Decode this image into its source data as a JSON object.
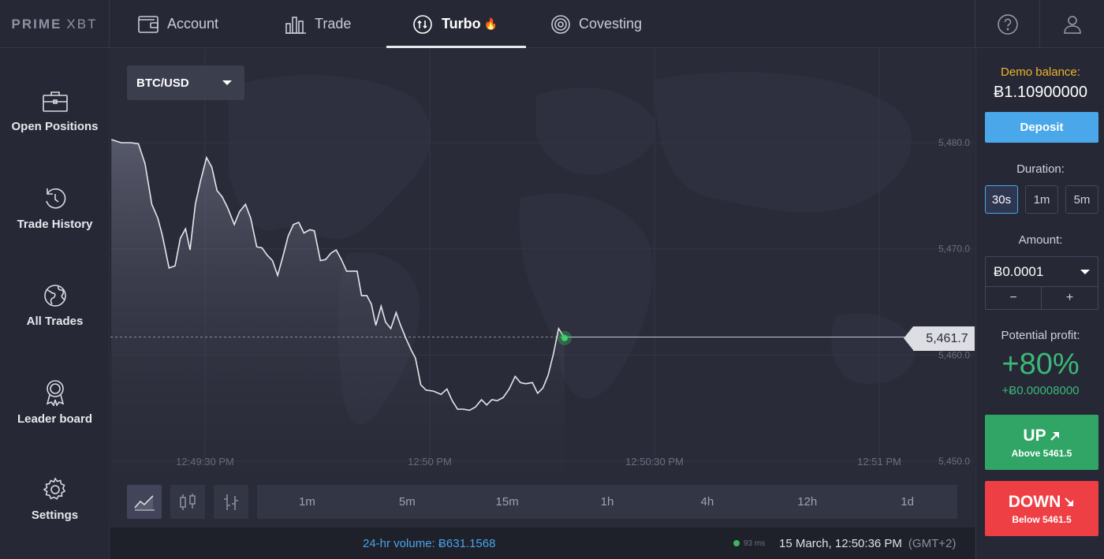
{
  "logo": {
    "part1": "PRIME",
    "part2": "XBT"
  },
  "nav": {
    "account": "Account",
    "trade": "Trade",
    "turbo": "Turbo",
    "turbo_emoji": "🔥",
    "covesting": "Covesting"
  },
  "sidebar": {
    "items": [
      {
        "label": "Open Positions",
        "icon": "briefcase-icon"
      },
      {
        "label": "Trade History",
        "icon": "history-icon"
      },
      {
        "label": "All Trades",
        "icon": "globe-icon"
      },
      {
        "label": "Leader board",
        "icon": "award-icon"
      },
      {
        "label": "Settings",
        "icon": "gear-icon"
      }
    ]
  },
  "chart": {
    "pair": "BTC/USD",
    "current_price": "5,461.7",
    "timeframes": [
      "1m",
      "5m",
      "15m",
      "1h",
      "4h",
      "12h",
      "1d"
    ],
    "chart_types": [
      "line-chart-icon",
      "candlestick-icon",
      "ohlc-bar-icon"
    ]
  },
  "chart_data": {
    "type": "line",
    "title": "",
    "xlabel": "",
    "ylabel": "",
    "ylim": [
      5450,
      5480
    ],
    "y_ticks": [
      "5,480.0",
      "5,470.0",
      "5,460.0",
      "5,450.0"
    ],
    "y_tick_values": [
      5480,
      5470,
      5460,
      5450
    ],
    "x_ticks": [
      "12:49:30 PM",
      "12:50 PM",
      "12:50:30 PM",
      "12:51 PM"
    ],
    "x_tick_seconds": [
      0,
      30,
      60,
      90
    ],
    "current": 5461.7,
    "series": [
      {
        "points": [
          [
            -12.5,
            5480.3
          ],
          [
            -11.2,
            5480.0
          ],
          [
            -9.9,
            5480.0
          ],
          [
            -8.9,
            5479.9
          ],
          [
            -8.0,
            5478.0
          ],
          [
            -7.1,
            5474.2
          ],
          [
            -6.3,
            5472.9
          ],
          [
            -5.7,
            5471.3
          ],
          [
            -4.8,
            5468.2
          ],
          [
            -4.0,
            5468.4
          ],
          [
            -3.3,
            5471.0
          ],
          [
            -2.6,
            5471.9
          ],
          [
            -2.0,
            5469.9
          ],
          [
            -1.3,
            5474.2
          ],
          [
            -0.6,
            5476.4
          ],
          [
            0.2,
            5478.6
          ],
          [
            0.9,
            5477.7
          ],
          [
            1.6,
            5475.5
          ],
          [
            2.3,
            5474.9
          ],
          [
            3.0,
            5473.9
          ],
          [
            3.9,
            5472.3
          ],
          [
            4.6,
            5473.5
          ],
          [
            5.4,
            5474.2
          ],
          [
            6.1,
            5472.9
          ],
          [
            6.9,
            5470.2
          ],
          [
            7.6,
            5470.1
          ],
          [
            8.3,
            5469.4
          ],
          [
            9.0,
            5468.9
          ],
          [
            9.7,
            5467.5
          ],
          [
            10.4,
            5469.3
          ],
          [
            11.1,
            5471.2
          ],
          [
            11.8,
            5472.3
          ],
          [
            12.5,
            5472.5
          ],
          [
            13.2,
            5471.5
          ],
          [
            14.0,
            5471.8
          ],
          [
            14.6,
            5471.7
          ],
          [
            15.4,
            5468.9
          ],
          [
            16.1,
            5469.0
          ],
          [
            16.8,
            5469.6
          ],
          [
            17.5,
            5469.9
          ],
          [
            18.2,
            5469.0
          ],
          [
            18.9,
            5467.9
          ],
          [
            19.6,
            5467.9
          ],
          [
            20.3,
            5467.9
          ],
          [
            20.9,
            5465.6
          ],
          [
            21.6,
            5465.6
          ],
          [
            22.2,
            5464.8
          ],
          [
            22.8,
            5462.8
          ],
          [
            23.5,
            5464.6
          ],
          [
            24.1,
            5463.1
          ],
          [
            24.8,
            5462.5
          ],
          [
            25.5,
            5464.0
          ],
          [
            26.1,
            5462.8
          ],
          [
            26.8,
            5461.6
          ],
          [
            27.5,
            5460.5
          ],
          [
            28.1,
            5459.7
          ],
          [
            28.8,
            5457.2
          ],
          [
            29.5,
            5456.7
          ],
          [
            30.5,
            5456.6
          ],
          [
            31.5,
            5456.3
          ],
          [
            32.3,
            5456.8
          ],
          [
            33.0,
            5455.7
          ],
          [
            33.7,
            5454.9
          ],
          [
            34.5,
            5454.9
          ],
          [
            35.3,
            5454.8
          ],
          [
            36.1,
            5455.1
          ],
          [
            36.9,
            5455.8
          ],
          [
            37.6,
            5455.3
          ],
          [
            38.3,
            5455.8
          ],
          [
            39.0,
            5455.7
          ],
          [
            39.8,
            5456.0
          ],
          [
            40.6,
            5456.8
          ],
          [
            41.4,
            5458.0
          ],
          [
            42.1,
            5457.4
          ],
          [
            42.8,
            5457.3
          ],
          [
            43.7,
            5457.4
          ],
          [
            44.4,
            5456.4
          ],
          [
            45.1,
            5456.9
          ],
          [
            45.8,
            5458.1
          ],
          [
            46.5,
            5460.1
          ],
          [
            47.2,
            5462.5
          ],
          [
            48.0,
            5461.6
          ]
        ]
      }
    ]
  },
  "status": {
    "volume": "24-hr volume: Ƀ631.1568",
    "ping": "93 ms",
    "datetime": "15 March, 12:50:36 PM",
    "timezone": "(GMT+2)"
  },
  "panel": {
    "demo_label": "Demo balance:",
    "demo_balance": "Ƀ1.10900000",
    "deposit": "Deposit",
    "duration_label": "Duration:",
    "durations": [
      "30s",
      "1m",
      "5m"
    ],
    "amount_label": "Amount:",
    "amount": "Ƀ0.0001",
    "minus": "−",
    "plus": "+",
    "profit_label": "Potential profit:",
    "profit_pct": "+80%",
    "profit_value": "+Ƀ0.00008000",
    "up_label": "UP",
    "up_sub": "Above 5461.5",
    "down_label": "DOWN",
    "down_sub": "Below 5461.5"
  },
  "colors": {
    "accent": "#4aa8ea",
    "up": "#31a566",
    "down": "#ee3f45",
    "demo": "#f0b429",
    "profit": "#3cb878"
  }
}
